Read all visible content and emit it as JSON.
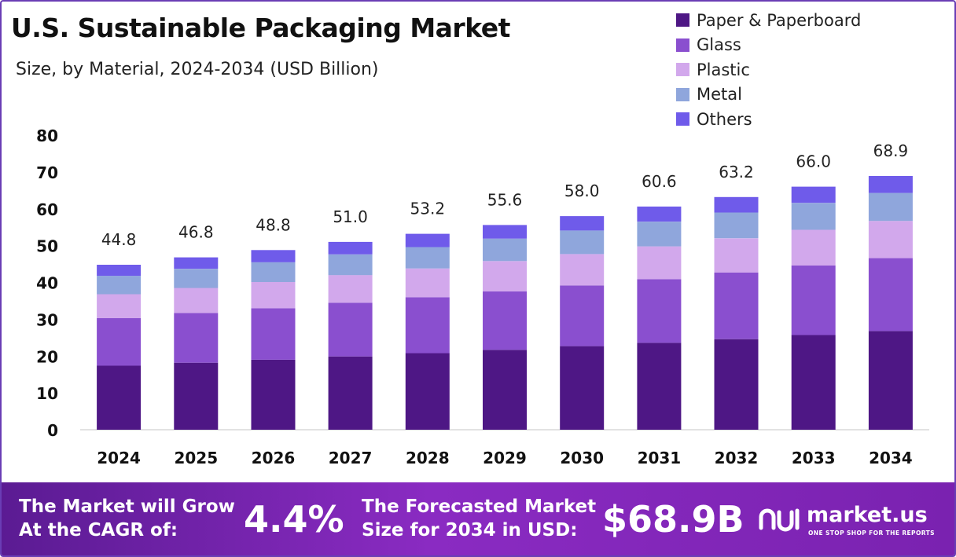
{
  "header": {
    "title": "U.S. Sustainable Packaging Market",
    "subtitle": "Size, by Material, 2024-2034 (USD Billion)"
  },
  "chart_data": {
    "type": "bar",
    "stacked": true,
    "categories": [
      "2024",
      "2025",
      "2026",
      "2027",
      "2028",
      "2029",
      "2030",
      "2031",
      "2032",
      "2033",
      "2034"
    ],
    "series": [
      {
        "name": "Paper & Paperboard",
        "color": "#4e1785",
        "values": [
          17.4,
          18.2,
          19.0,
          19.9,
          20.8,
          21.7,
          22.7,
          23.6,
          24.6,
          25.7,
          26.8
        ]
      },
      {
        "name": "Glass",
        "color": "#8a4fcf",
        "values": [
          12.9,
          13.5,
          14.0,
          14.6,
          15.2,
          15.9,
          16.5,
          17.3,
          18.1,
          18.9,
          19.8
        ]
      },
      {
        "name": "Plastic",
        "color": "#d2a8ec",
        "values": [
          6.5,
          6.8,
          7.1,
          7.5,
          7.8,
          8.2,
          8.5,
          8.9,
          9.3,
          9.7,
          10.1
        ]
      },
      {
        "name": "Metal",
        "color": "#8fa6dc",
        "values": [
          5.0,
          5.2,
          5.4,
          5.6,
          5.8,
          6.1,
          6.4,
          6.7,
          7.0,
          7.3,
          7.6
        ]
      },
      {
        "name": "Others",
        "color": "#6f5bea",
        "values": [
          3.0,
          3.1,
          3.3,
          3.4,
          3.6,
          3.7,
          3.9,
          4.1,
          4.2,
          4.4,
          4.6
        ]
      }
    ],
    "totals": [
      "44.8",
      "46.8",
      "48.8",
      "51.0",
      "53.2",
      "55.6",
      "58.0",
      "60.6",
      "63.2",
      "66.0",
      "68.9"
    ],
    "yticks": [
      "0",
      "10",
      "20",
      "30",
      "40",
      "50",
      "60",
      "70",
      "80"
    ],
    "ylim": [
      0,
      80
    ],
    "grid": false,
    "legend_position": "top-right"
  },
  "footer": {
    "cagr_text_line1": "The Market will Grow",
    "cagr_text_line2": "At the CAGR of:",
    "cagr_value": "4.4%",
    "forecast_text_line1": "The Forecasted Market",
    "forecast_text_line2": "Size for 2034 in USD:",
    "forecast_value": "$68.9B",
    "brand_name": "market.us",
    "brand_tagline": "ONE STOP SHOP FOR THE REPORTS",
    "brand_icon": "market-us-logo-icon"
  }
}
